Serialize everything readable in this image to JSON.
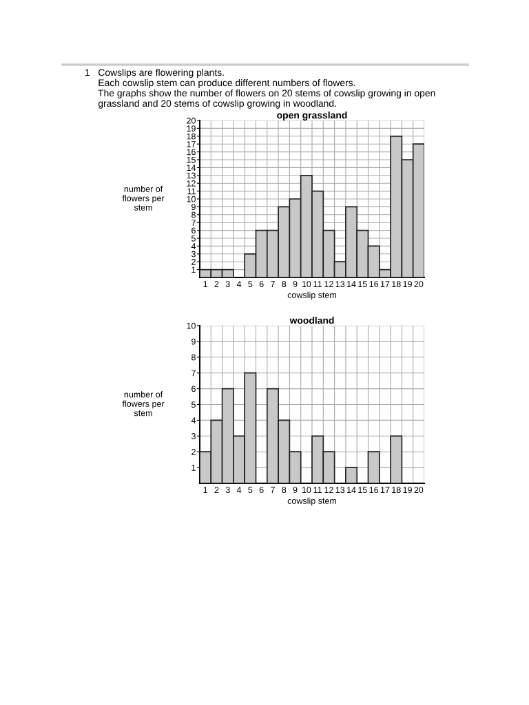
{
  "chart_data": [
    {
      "type": "bar",
      "title": "open grassland",
      "xlabel": "cowslip stem",
      "ylabel": "number of\nflowers per\nstem",
      "annotations": [
        "1   Cowslips are flowering plants.\n     Each cowslip stem can produce different numbers of flowers.\n     The graphs show the number of flowers on 20 stems of cowslip growing in open\n     grassland and 20 stems of cowslip growing in woodland."
      ],
      "categories": [
        "1",
        "2",
        "3",
        "4",
        "5",
        "6",
        "7",
        "8",
        "9",
        "10",
        "11",
        "12",
        "13",
        "14",
        "15",
        "16",
        "17",
        "18",
        "19",
        "20"
      ],
      "values": [
        1,
        1,
        1,
        0,
        3,
        6,
        6,
        9,
        10,
        13,
        11,
        6,
        2,
        9,
        6,
        4,
        1,
        18,
        15,
        17
      ],
      "color": "#c8c8c8",
      "ylim": [
        0,
        20
      ],
      "yticks": [
        1,
        2,
        3,
        4,
        5,
        6,
        7,
        8,
        9,
        10,
        11,
        12,
        13,
        14,
        15,
        16,
        17,
        18,
        19,
        20
      ],
      "grid": true,
      "legend": false
    },
    {
      "type": "bar",
      "title": "woodland",
      "xlabel": "cowslip stem",
      "ylabel": "number of\nflowers per\nstem",
      "categories": [
        "1",
        "2",
        "3",
        "4",
        "5",
        "6",
        "7",
        "8",
        "9",
        "10",
        "11",
        "12",
        "13",
        "14",
        "15",
        "16",
        "17",
        "18",
        "19",
        "20"
      ],
      "values": [
        2,
        4,
        6,
        3,
        7,
        0,
        6,
        4,
        2,
        0,
        3,
        2,
        0,
        1,
        0,
        2,
        0,
        3,
        0,
        0
      ],
      "color": "#c8c8c8",
      "ylim": [
        0,
        10
      ],
      "yticks": [
        1,
        2,
        3,
        4,
        5,
        6,
        7,
        8,
        9,
        10
      ],
      "grid": true,
      "legend": false
    }
  ]
}
